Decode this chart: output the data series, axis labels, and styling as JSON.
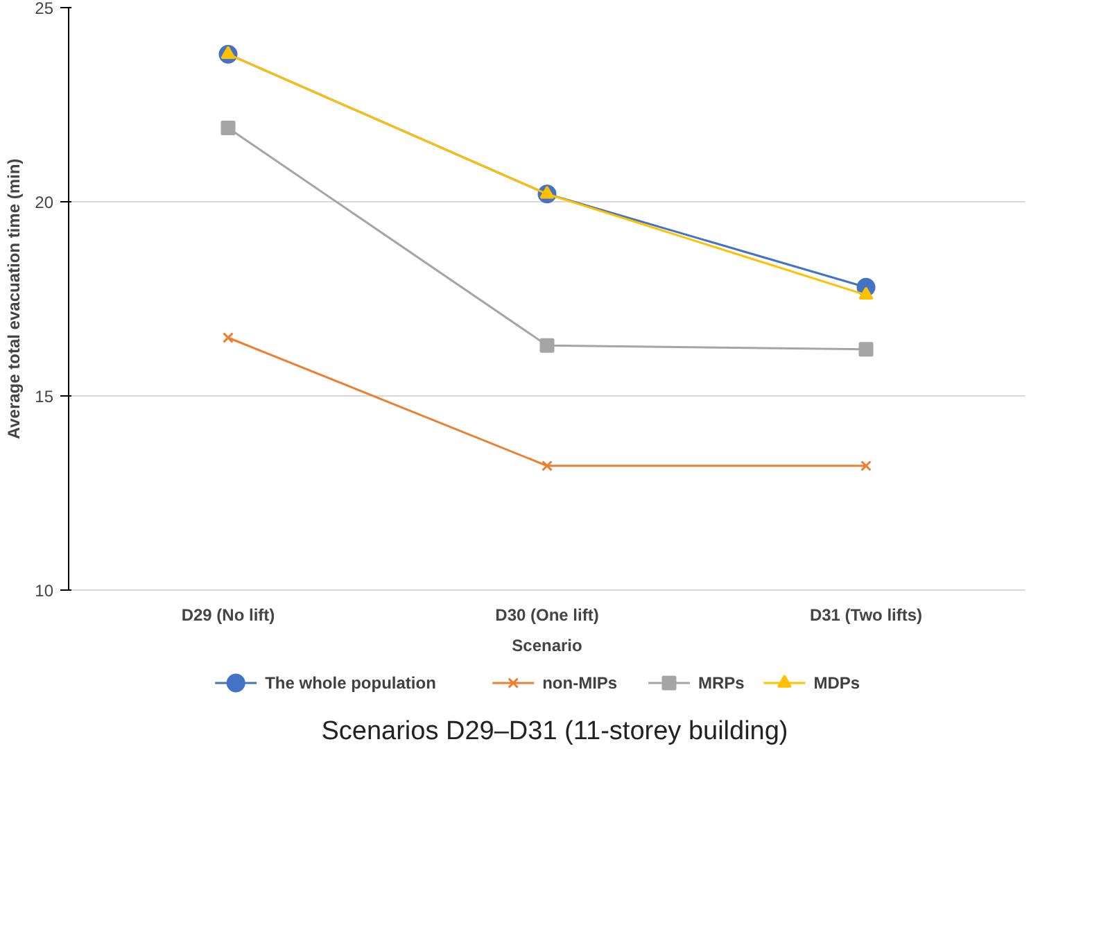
{
  "chart_data": {
    "type": "line",
    "xlabel": "Scenario",
    "ylabel": "Average total evacuation time (min)",
    "categories": [
      "D29 (No lift)",
      "D30 (One lift)",
      "D31 (Two lifts)"
    ],
    "series": [
      {
        "name": "The whole population",
        "color": "#4472c4",
        "marker": "circle",
        "values": [
          23.8,
          20.2,
          17.8
        ]
      },
      {
        "name": "non-MIPs",
        "color": "#ed7d31",
        "marker": "cross",
        "values": [
          16.5,
          13.2,
          13.2
        ]
      },
      {
        "name": "MRPs",
        "color": "#a5a5a5",
        "marker": "square",
        "values": [
          21.9,
          16.3,
          16.2
        ]
      },
      {
        "name": "MDPs",
        "color": "#ffc000",
        "marker": "triangle",
        "values": [
          23.8,
          20.2,
          17.6
        ]
      }
    ],
    "ylim": [
      10,
      25
    ],
    "yticks": [
      10,
      15,
      20,
      25
    ],
    "grid": "y",
    "legend": "bottom",
    "annotations": [
      "Scenarios D29–D31 (11-storey building)"
    ]
  }
}
